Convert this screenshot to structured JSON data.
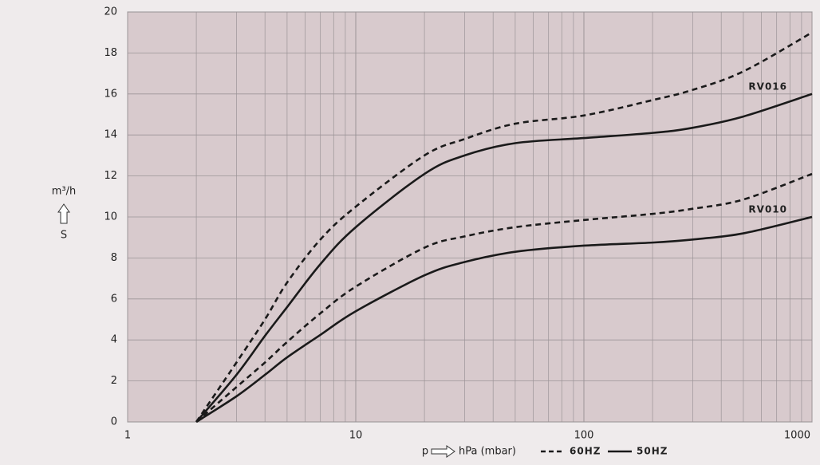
{
  "chart_data": {
    "type": "line",
    "xlabel": "hPa (mbar)",
    "xsymbol": "p",
    "ylabel": "m³/h",
    "ysymbol": "S",
    "x": [
      2,
      3,
      4,
      5,
      7,
      10,
      20,
      30,
      50,
      100,
      200,
      300,
      500,
      1000
    ],
    "models": [
      {
        "label": "RV016",
        "series": [
          {
            "name": "60HZ",
            "dashed": true,
            "color": "#1a1a1a",
            "values": [
              0,
              2.9,
              5.0,
              6.8,
              8.9,
              10.5,
              13.0,
              13.8,
              14.55,
              14.95,
              15.7,
              16.2,
              17.1,
              19.0
            ]
          },
          {
            "name": "50HZ",
            "dashed": false,
            "color": "#1a1a1a",
            "values": [
              0,
              2.3,
              4.2,
              5.6,
              7.7,
              9.5,
              12.1,
              13.0,
              13.6,
              13.85,
              14.1,
              14.35,
              14.9,
              16.0
            ]
          }
        ]
      },
      {
        "label": "RV010",
        "series": [
          {
            "name": "60HZ",
            "dashed": true,
            "color": "#1a1a1a",
            "values": [
              0,
              1.7,
              2.9,
              3.9,
              5.3,
              6.6,
              8.5,
              9.05,
              9.5,
              9.85,
              10.15,
              10.4,
              10.85,
              12.1
            ]
          },
          {
            "name": "50HZ",
            "dashed": false,
            "color": "#1a1a1a",
            "values": [
              0,
              1.25,
              2.3,
              3.15,
              4.25,
              5.4,
              7.15,
              7.8,
              8.3,
              8.6,
              8.75,
              8.9,
              9.2,
              10.0
            ]
          }
        ]
      }
    ],
    "legend": [
      {
        "name": "60HZ",
        "dashed": true
      },
      {
        "name": "50HZ",
        "dashed": false
      }
    ],
    "xscale": "log",
    "xlim": [
      1,
      1000
    ],
    "xticks": [
      1,
      10,
      100,
      1000
    ],
    "ylim": [
      0,
      20
    ],
    "yticks": [
      0,
      2,
      4,
      6,
      8,
      10,
      12,
      14,
      16,
      18,
      20
    ],
    "grid": true
  }
}
